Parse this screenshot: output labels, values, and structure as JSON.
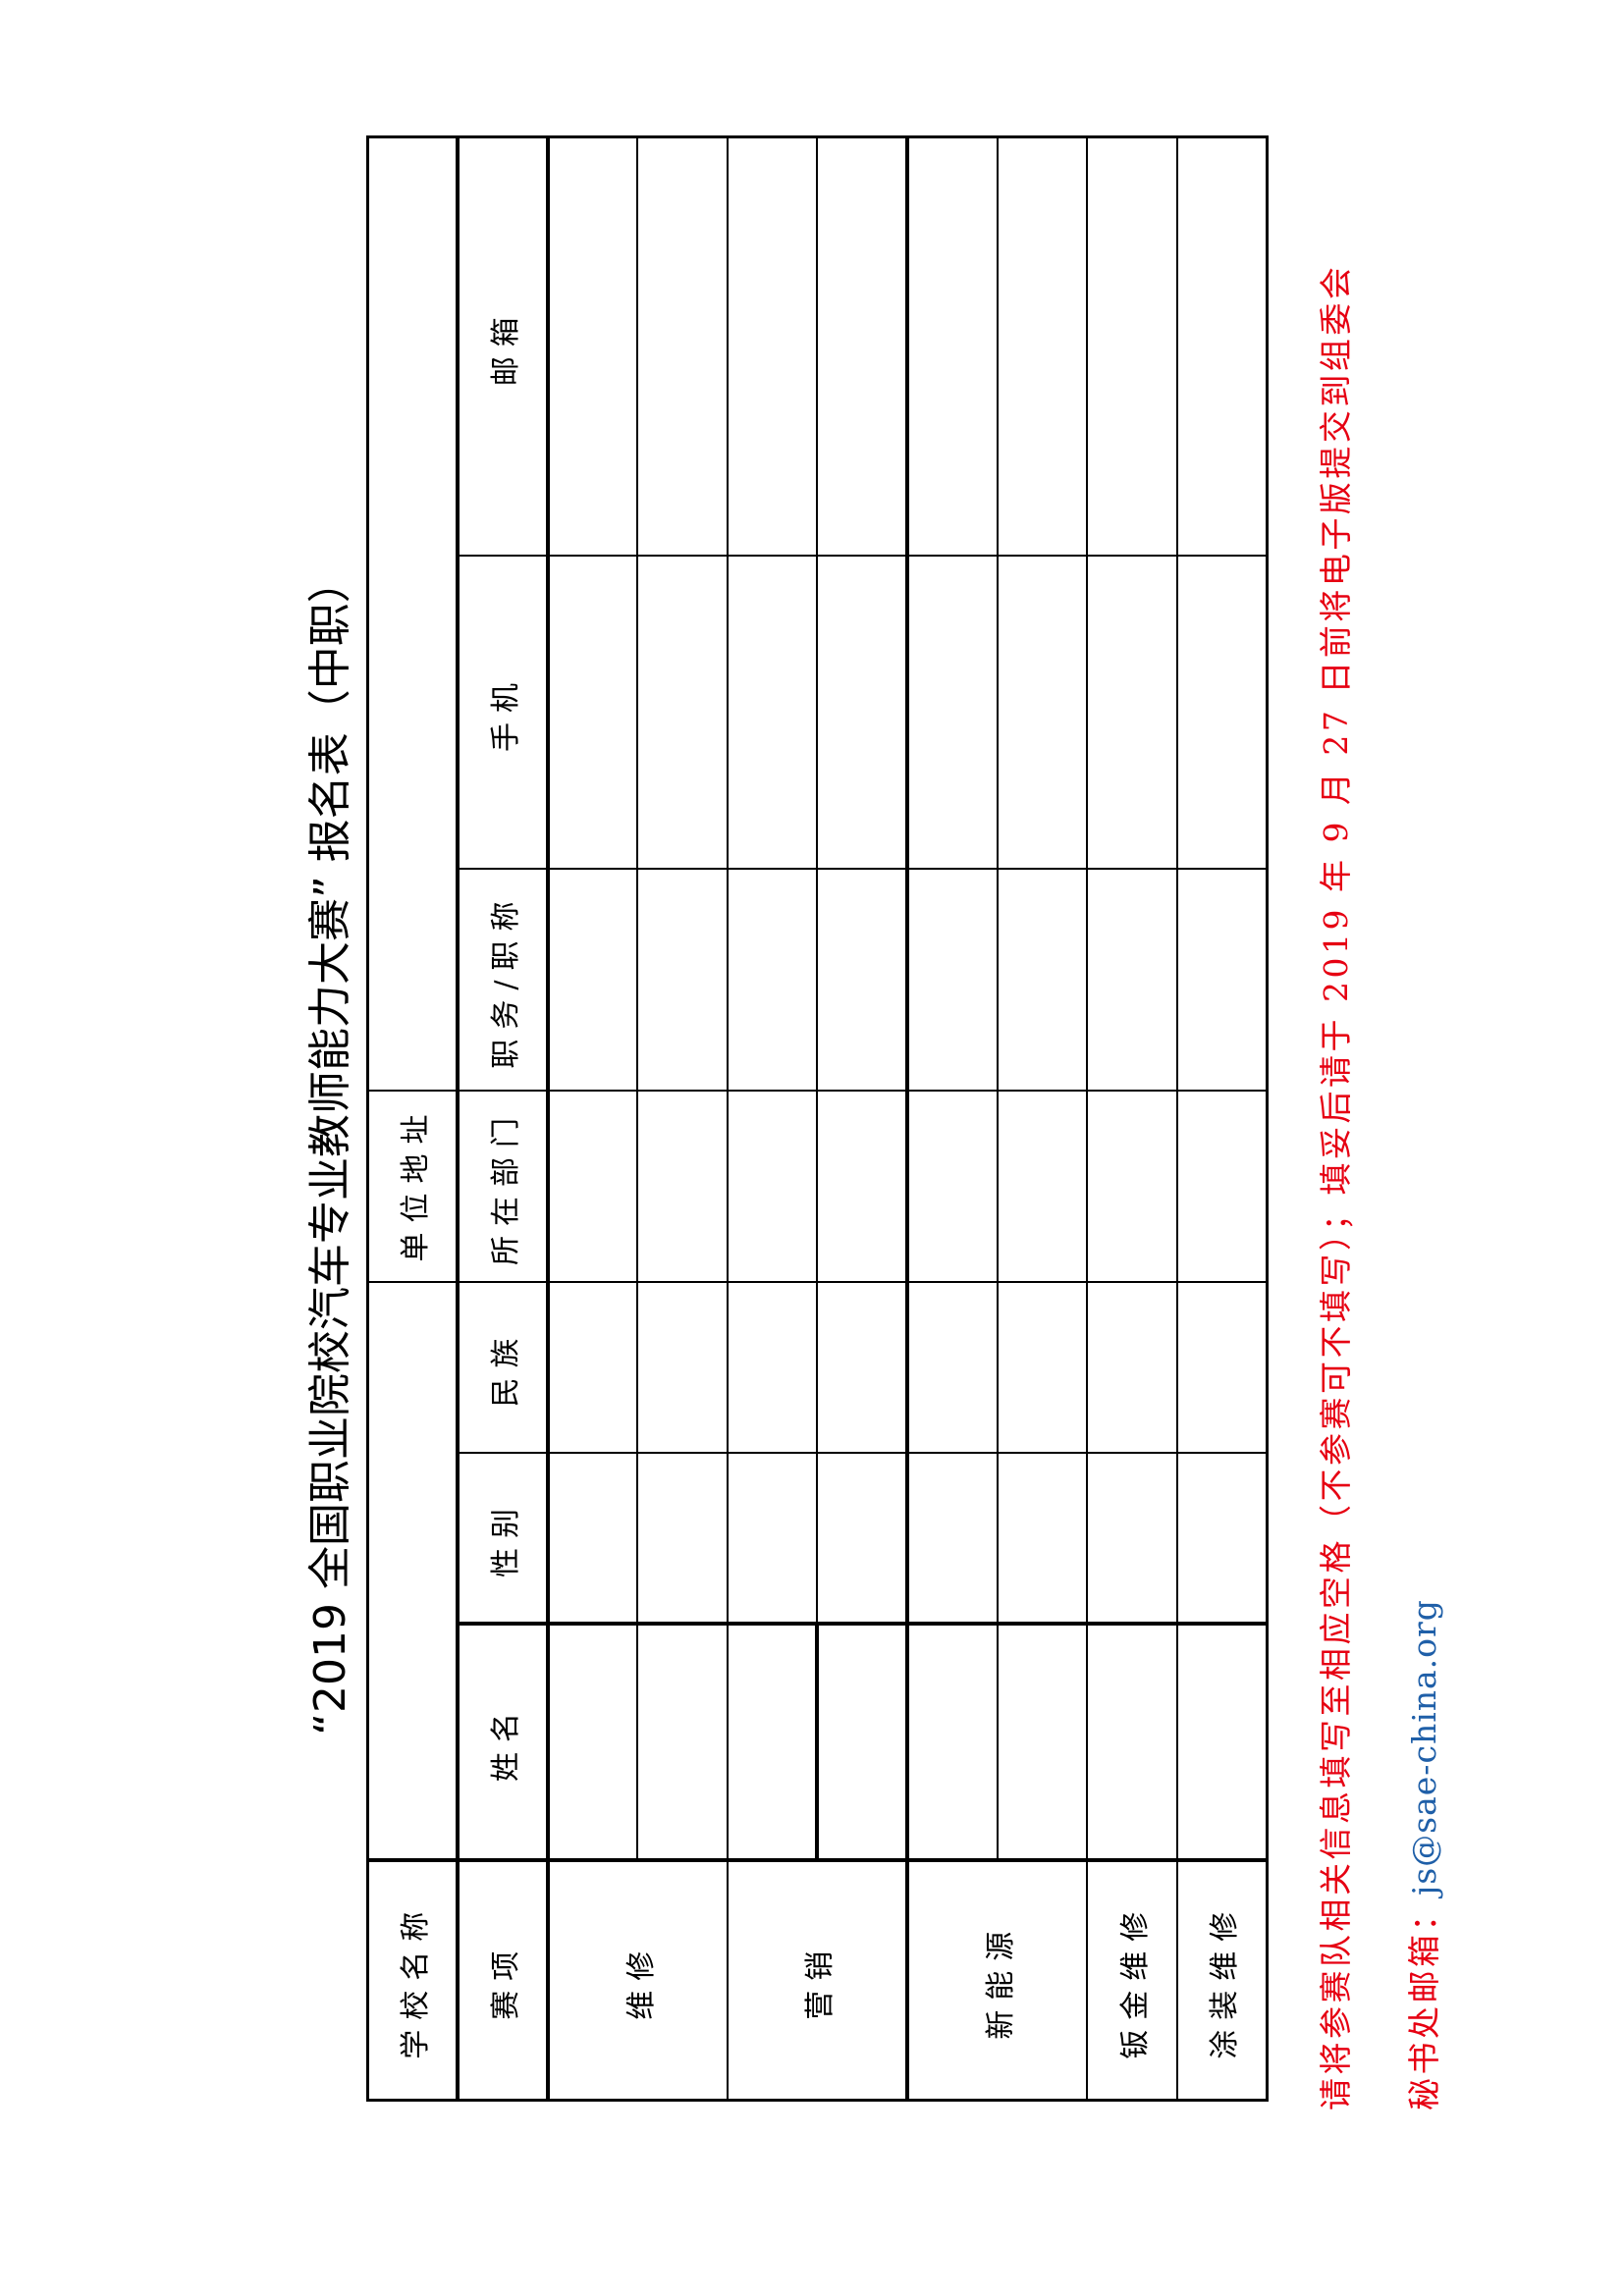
{
  "title": "“2019 全国职业院校汽车专业教师能力大赛” 报名表（中职）",
  "table": {
    "school_label": "学校名称",
    "address_label": "单位地址",
    "headers": [
      "赛项",
      "姓名",
      "性别",
      "民族",
      "所在部门",
      "职务/职称",
      "手机",
      "邮箱"
    ],
    "events": [
      "维修",
      "营销",
      "新能源",
      "钣金维修",
      "涂装维修"
    ]
  },
  "note": "请将参赛队相关信息填写至相应空格（不参赛可不填写）；填妥后请于 2019 年 9 月 27 日前将电子版提交到组委会",
  "contact": {
    "label": "秘书处邮箱：",
    "email": "js@sae-china.org"
  },
  "colors": {
    "note": "#e60012",
    "email": "#1f5fa8"
  }
}
